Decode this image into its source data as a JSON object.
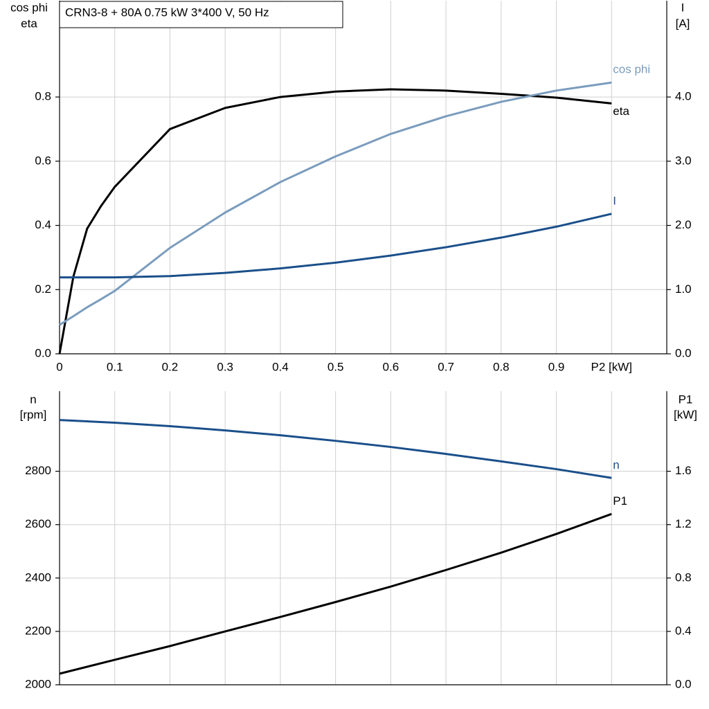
{
  "chart_data": [
    {
      "type": "line",
      "title": "CRN3-8 + 80A   0.75 kW   3*400 V, 50 Hz",
      "ylabel": [
        "cos phi",
        "eta"
      ],
      "y2label": [
        "I",
        "[A]"
      ],
      "x": [
        0,
        0.025,
        0.05,
        0.075,
        0.1,
        0.2,
        0.3,
        0.4,
        0.5,
        0.6,
        0.7,
        0.8,
        0.9,
        1.0
      ],
      "xlim": [
        0,
        1.1
      ],
      "xticks": [
        0,
        0.1,
        0.2,
        0.3,
        0.4,
        0.5,
        0.6,
        0.7,
        0.8,
        0.9,
        {
          "value": 1.0,
          "label": "P2 [kW]"
        }
      ],
      "ylim": [
        0,
        1.1
      ],
      "yticks": [
        {
          "value": 0,
          "label": "0.0"
        },
        0.2,
        0.4,
        0.6,
        0.8
      ],
      "y2lim": [
        0,
        5.5
      ],
      "y2ticks": [
        {
          "value": 0,
          "label": "0.0"
        },
        {
          "value": 1,
          "label": "1.0"
        },
        {
          "value": 2,
          "label": "2.0"
        },
        {
          "value": 3,
          "label": "3.0"
        },
        {
          "value": 4,
          "label": "4.0"
        }
      ],
      "grid": true,
      "series": [
        {
          "name": "eta",
          "color": "#000000",
          "values": [
            0,
            0.24,
            0.39,
            0.46,
            0.52,
            0.7,
            0.766,
            0.8,
            0.817,
            0.824,
            0.82,
            0.81,
            0.798,
            0.78
          ]
        },
        {
          "name": "cos phi",
          "color": "#7a9cbd",
          "values": [
            0.09,
            0.117,
            0.145,
            0.17,
            0.196,
            0.33,
            0.44,
            0.535,
            0.615,
            0.685,
            0.74,
            0.785,
            0.82,
            0.845
          ]
        },
        {
          "name": "I",
          "color": "#1a4f8a",
          "axis": "y2",
          "values": [
            1.19,
            1.19,
            1.19,
            1.19,
            1.19,
            1.21,
            1.26,
            1.33,
            1.42,
            1.53,
            1.66,
            1.81,
            1.98,
            2.18
          ]
        }
      ]
    },
    {
      "type": "line",
      "ylabel": [
        "n",
        "[rpm]"
      ],
      "y2label": [
        "P1",
        "[kW]"
      ],
      "x": [
        0,
        0.1,
        0.2,
        0.3,
        0.4,
        0.5,
        0.6,
        0.7,
        0.8,
        0.9,
        1.0
      ],
      "xlim": [
        0,
        1.1
      ],
      "xticks": [
        0,
        0.1,
        0.2,
        0.3,
        0.4,
        0.5,
        0.6,
        0.7,
        0.8,
        0.9,
        1.0
      ],
      "show_xtick_labels": false,
      "ylim": [
        2000,
        3100
      ],
      "yticks": [
        2000,
        2200,
        2400,
        2600,
        2800
      ],
      "y2lim": [
        0,
        2.2
      ],
      "y2ticks": [
        {
          "value": 0,
          "label": "0.0"
        },
        0.4,
        0.8,
        1.2,
        1.6
      ],
      "grid": true,
      "series": [
        {
          "name": "n",
          "color": "#1a4f8a",
          "values": [
            2992,
            2982,
            2969,
            2953,
            2935,
            2914,
            2891,
            2865,
            2837,
            2808,
            2775
          ]
        },
        {
          "name": "P1",
          "color": "#000000",
          "axis": "y2",
          "values": [
            0.083,
            0.187,
            0.29,
            0.4,
            0.508,
            0.62,
            0.736,
            0.86,
            0.99,
            1.13,
            1.28
          ]
        }
      ]
    }
  ]
}
